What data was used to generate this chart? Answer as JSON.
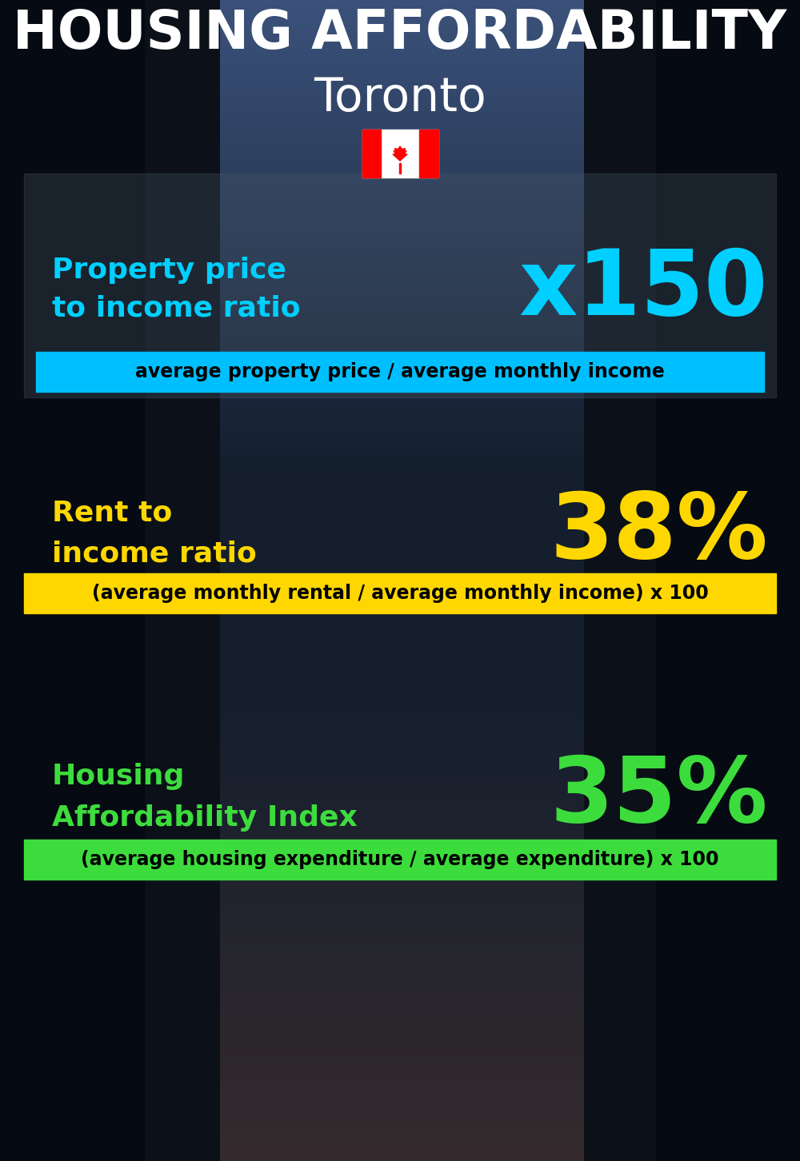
{
  "title_line1": "HOUSING AFFORDABILITY",
  "title_line2": "Toronto",
  "bg_color": "#080f1a",
  "section1_label": "Property price\nto income ratio",
  "section1_value": "x150",
  "section1_label_color": "#00cfff",
  "section1_value_color": "#00cfff",
  "section1_banner": "average property price / average monthly income",
  "section1_banner_bg": "#00bfff",
  "section1_banner_color": "#000000",
  "section2_label": "Rent to\nincome ratio",
  "section2_value": "38%",
  "section2_label_color": "#FFD700",
  "section2_value_color": "#FFD700",
  "section2_banner": "(average monthly rental / average monthly income) x 100",
  "section2_banner_bg": "#FFD700",
  "section2_banner_color": "#000000",
  "section3_label": "Housing\nAffordability Index",
  "section3_value": "35%",
  "section3_label_color": "#3ddc3d",
  "section3_value_color": "#3ddc3d",
  "section3_banner": "(average housing expenditure / average expenditure) x 100",
  "section3_banner_bg": "#3ddc3d",
  "section3_banner_color": "#000000",
  "title_fontsize": 48,
  "subtitle_fontsize": 42,
  "label_fontsize": 26,
  "value_fontsize": 82,
  "banner_fontsize": 17
}
